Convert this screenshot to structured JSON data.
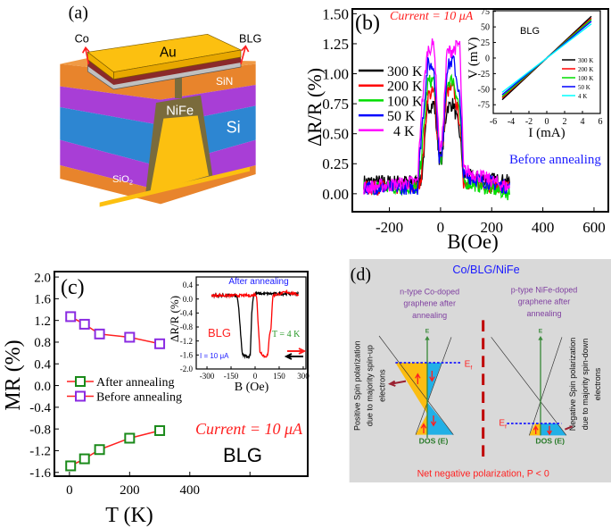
{
  "panel_a": {
    "label": "(a)",
    "layers": {
      "au": "Au",
      "sin": "SiN",
      "nife": "NiFe",
      "si": "Si",
      "sio2": "SiO",
      "sio2_sub": "2"
    },
    "contacts": {
      "left": "Co",
      "right": "BLG"
    },
    "colors": {
      "au": "#fcc010",
      "sin": "#e8842c",
      "purple": "#a83ed6",
      "si": "#2d86d2",
      "nife": "#7a6b3c",
      "red_layer": "#8b2a2a",
      "gray_layer": "#c0c0c0"
    }
  },
  "panel_d": {
    "label": "(d)",
    "title": "Co/BLG/NiFe",
    "left_header": [
      "n-type Co-doped",
      "graphene after",
      "annealing"
    ],
    "right_header": [
      "p-type NiFe-doped",
      "graphene after",
      "annealing"
    ],
    "left_side_text": [
      "Positive Spin polarization",
      "due to majority spin-up",
      "electrons"
    ],
    "right_side_text": [
      "Negative Spin polarization",
      "due to majority spin-down",
      "electrons"
    ],
    "energy_axis": "E",
    "fermi": "E",
    "fermi_sub": "f",
    "dos_label": "DOS (E)",
    "footer": "Net negative polarization, P < 0",
    "colors": {
      "background": "#d9d9d9",
      "spin_up": "#fbbd12",
      "spin_down": "#22b0e6",
      "title": "#1a1aff",
      "header": "#7f3fa0",
      "footer": "#ff2020",
      "axis": "#3a8a3a"
    }
  },
  "chart_data": [
    {
      "id": "b",
      "type": "line",
      "panel_label": "(b)",
      "annotation": "Current = 10 μA",
      "note": "Before annealing",
      "xlabel": "B(Oe)",
      "ylabel": "ΔR/R (%)",
      "xlim": [
        -345,
        656
      ],
      "ylim": [
        -0.15,
        1.54
      ],
      "xticks": [
        -200,
        0,
        200,
        400,
        600
      ],
      "xtick_labels": [
        "-200",
        "0",
        "200",
        "400",
        "600"
      ],
      "yticks": [
        0,
        0.25,
        0.5,
        0.75,
        1.0,
        1.25,
        1.5
      ],
      "ytick_labels": [
        "0.00",
        "0.25",
        "0.50",
        "0.75",
        "1.00",
        "1.25",
        "1.50"
      ],
      "legend": "left",
      "x": [
        -300,
        -90,
        -75,
        -50,
        -25,
        -5,
        5,
        25,
        50,
        75,
        90,
        270
      ],
      "series": [
        {
          "name": "300 K",
          "color": "#000000",
          "values": [
            0.1,
            0.1,
            0.1,
            0.72,
            0.75,
            0.3,
            0.3,
            0.72,
            0.75,
            0.5,
            0.15,
            0.1
          ]
        },
        {
          "name": "200 K",
          "color": "#ff0000",
          "values": [
            0.05,
            0.05,
            0.15,
            0.82,
            0.85,
            0.3,
            0.3,
            0.85,
            0.88,
            0.6,
            0.1,
            0.05
          ]
        },
        {
          "name": "100 K",
          "color": "#00dd00",
          "values": [
            0.05,
            0.05,
            0.3,
            0.93,
            0.95,
            0.3,
            0.3,
            0.93,
            0.95,
            0.7,
            0.1,
            0.0
          ]
        },
        {
          "name": "50 K",
          "color": "#0000ff",
          "values": [
            0.05,
            0.05,
            0.5,
            1.08,
            1.05,
            0.3,
            0.3,
            1.05,
            1.12,
            0.8,
            0.15,
            0.05
          ]
        },
        {
          "name": "4 K",
          "color": "#ff00ff",
          "values": [
            0.05,
            0.1,
            0.7,
            1.2,
            1.25,
            0.4,
            0.4,
            1.18,
            1.2,
            1.25,
            0.2,
            0.05
          ]
        }
      ]
    },
    {
      "id": "b_inset",
      "type": "line",
      "label": "BLG",
      "xlabel": "I (mA)",
      "ylabel": "V (mV)",
      "xlim": [
        -6,
        6
      ],
      "ylim": [
        -89,
        76
      ],
      "xticks": [
        -6,
        -4,
        -2,
        0,
        2,
        4,
        6
      ],
      "xtick_labels": [
        "-6",
        "-4",
        "-2",
        "0",
        "2",
        "4",
        "6"
      ],
      "yticks": [
        -75,
        -50,
        -25,
        0,
        25,
        50,
        75
      ],
      "ytick_labels": [
        "-75",
        "-50",
        "-25",
        "0",
        "25",
        "50",
        "75"
      ],
      "legend": "right",
      "x": [
        -5,
        5
      ],
      "series": [
        {
          "name": "300 K",
          "color": "#000000",
          "values": [
            -67,
            67
          ]
        },
        {
          "name": "200 K",
          "color": "#ff0000",
          "values": [
            -64,
            64
          ]
        },
        {
          "name": "100 K",
          "color": "#00dd00",
          "values": [
            -62,
            62
          ]
        },
        {
          "name": "50 K",
          "color": "#0000ff",
          "values": [
            -59,
            59
          ]
        },
        {
          "name": "4 K",
          "color": "#00ffff",
          "values": [
            -55,
            55
          ]
        }
      ]
    },
    {
      "id": "c",
      "type": "line",
      "panel_label": "(c)",
      "annotation": "Current = 10 μA",
      "note": "BLG",
      "xlabel": "T (K)",
      "ylabel": "MR (%)",
      "xlim": [
        -50,
        792
      ],
      "ylim": [
        -1.67,
        2.1
      ],
      "xticks": [
        0,
        200,
        400,
        600
      ],
      "xtick_labels": [
        "0",
        "200",
        "400",
        ""
      ],
      "yticks": [
        -1.6,
        -1.2,
        -0.8,
        -0.4,
        0.0,
        0.4,
        0.8,
        1.2,
        1.6,
        2.0
      ],
      "ytick_labels": [
        "-1.6",
        "-1.2",
        "-0.8",
        "-0.4",
        "0.0",
        "0.4",
        "0.8",
        "1.2",
        "1.6",
        "2.0"
      ],
      "legend": "left",
      "x": [
        4,
        50,
        100,
        200,
        300
      ],
      "series": [
        {
          "name": "After annealing",
          "color": "#ff2020",
          "marker_color": "#1a8a1a",
          "values": [
            -1.48,
            -1.35,
            -1.18,
            -0.97,
            -0.83
          ]
        },
        {
          "name": "Before annealing",
          "color": "#ff2020",
          "marker_color": "#8a2be2",
          "values": [
            1.27,
            1.13,
            0.95,
            0.89,
            0.77
          ]
        }
      ]
    },
    {
      "id": "c_inset",
      "type": "line",
      "title": "After annealing",
      "label": "BLG",
      "temperature": "T = 4 K",
      "current": "I = 10 μA",
      "xlabel": "B (Oe)",
      "ylabel": "ΔR/R (%)",
      "xlim": [
        -367,
        317
      ],
      "ylim": [
        -2.0,
        0.63
      ],
      "xticks": [
        -300,
        -150,
        0,
        150,
        300
      ],
      "xtick_labels": [
        "-300",
        "-150",
        "0",
        "150",
        "300"
      ],
      "yticks": [
        -2.0,
        -1.6,
        -1.2,
        -0.8,
        -0.4,
        0.0,
        0.4
      ],
      "ytick_labels": [
        "-2.0",
        "-1.6",
        "-1.2",
        "-0.8",
        "-0.4",
        "0.0",
        "0.4"
      ],
      "series": [
        {
          "sweep": "down",
          "color": "#000000",
          "x": [
            -270,
            -130,
            -110,
            -100,
            -90,
            -80,
            -40,
            -30,
            -20,
            -10,
            0,
            100,
            270
          ],
          "values": [
            0.1,
            0.1,
            0.05,
            -0.4,
            -1.0,
            -1.6,
            -1.65,
            -1.6,
            -0.3,
            0.1,
            0.15,
            0.15,
            0.15
          ]
        },
        {
          "sweep": "up",
          "color": "#ff0000",
          "x": [
            -270,
            -20,
            0,
            10,
            20,
            30,
            60,
            80,
            90,
            100,
            110,
            200,
            270
          ],
          "values": [
            0.1,
            0.1,
            0.12,
            0.1,
            -0.8,
            -1.5,
            -1.65,
            -1.6,
            -1.0,
            -0.8,
            0.1,
            0.2,
            0.12
          ]
        }
      ]
    }
  ]
}
